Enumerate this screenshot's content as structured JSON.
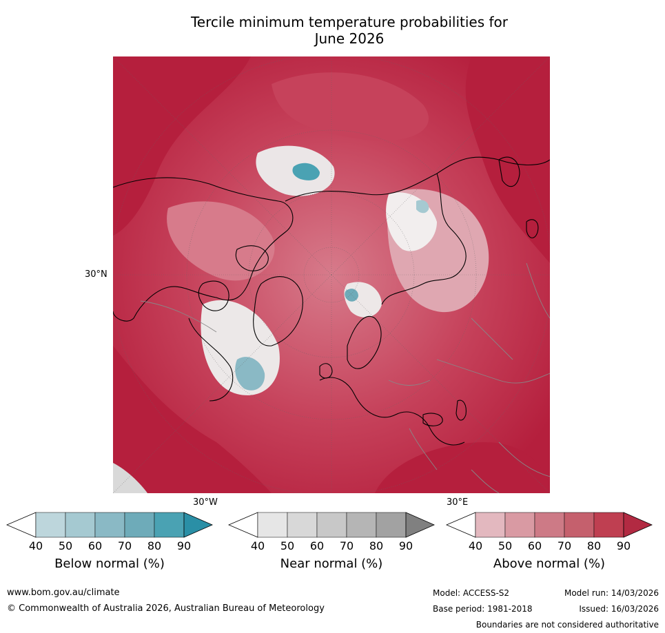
{
  "title_line1": "Tercile minimum temperature probabilities for",
  "title_line2": "June 2026",
  "map": {
    "lat_label": "30°N",
    "lon_label_left": "30°W",
    "lon_label_right": "30°E"
  },
  "colorbars": [
    {
      "label": "Below normal (%)",
      "ticks": [
        "40",
        "50",
        "60",
        "70",
        "80",
        "90"
      ],
      "colors": [
        "#bdd6dc",
        "#a5c9d1",
        "#8ab9c5",
        "#6eabb9",
        "#4aa2b3",
        "#2a8fa6"
      ]
    },
    {
      "label": "Near normal (%)",
      "ticks": [
        "40",
        "50",
        "60",
        "70",
        "80",
        "90"
      ],
      "colors": [
        "#e6e6e6",
        "#d8d8d8",
        "#c8c8c8",
        "#b5b5b5",
        "#a2a2a2",
        "#808080"
      ]
    },
    {
      "label": "Above normal (%)",
      "ticks": [
        "40",
        "50",
        "60",
        "70",
        "80",
        "90"
      ],
      "colors": [
        "#e3b8bf",
        "#d99aa3",
        "#cd7a86",
        "#c5606d",
        "#bf3f51",
        "#b22a42"
      ]
    }
  ],
  "footer": {
    "website": "www.bom.gov.au/climate",
    "copyright": "© Commonwealth of Australia 2026, Australian Bureau of Meteorology",
    "model": "Model: ACCESS-S2",
    "model_run": "Model run: 14/03/2026",
    "base_period": "Base period: 1981-2018",
    "issued": "Issued: 16/03/2026",
    "boundaries": "Boundaries are not considered authoritative"
  },
  "map_colors": {
    "ocean_high": "#b51f3d",
    "ocean_mid": "#c6425b",
    "ocean_low": "#d77b8b",
    "near_normal": "#e9e6e6",
    "below_normal": "#4aa2b3",
    "coast": "#000000",
    "border": "#888888"
  }
}
